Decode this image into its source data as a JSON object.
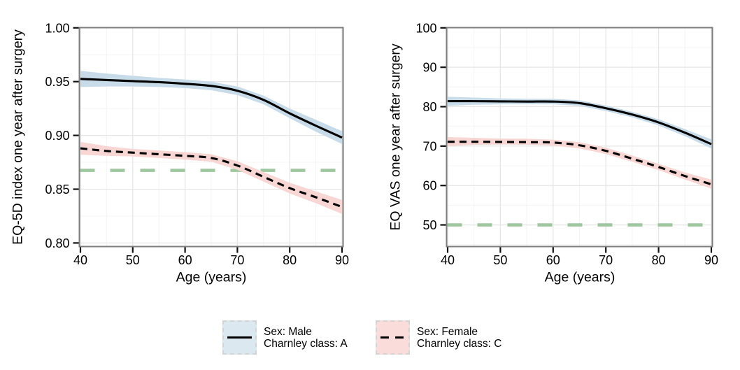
{
  "colors": {
    "background": "#ffffff",
    "panel_border": "#7d7d7d",
    "grid_major": "#e6e6e6",
    "grid_minor": "#f4f4f4",
    "tick": "#111111",
    "text": "#000000"
  },
  "chart_data": [
    {
      "type": "line",
      "title": "",
      "xlabel": "Age (years)",
      "ylabel": "EQ-5D index one year after surgery",
      "xlim": [
        40,
        90
      ],
      "ylim": [
        0.797,
        1.0
      ],
      "grid": true,
      "x_ticks": [
        40,
        50,
        60,
        70,
        80,
        90
      ],
      "x_minor_ticks": [
        45,
        55,
        65,
        75,
        85
      ],
      "y_ticks": [
        0.8,
        0.85,
        0.9,
        0.95,
        1.0
      ],
      "y_tick_labels": [
        "0.80",
        "0.85",
        "0.90",
        "0.95",
        "1.00"
      ],
      "y_minor_ticks": [
        0.825,
        0.875,
        0.925,
        0.975
      ],
      "x": [
        40,
        45,
        50,
        55,
        60,
        65,
        70,
        75,
        80,
        85,
        90
      ],
      "series": [
        {
          "name": "Sex: Male, Charnley class: A",
          "line_style": "solid",
          "line_color": "#000000",
          "band_color": "#c7dbe9",
          "values": [
            0.9525,
            0.9515,
            0.9505,
            0.9495,
            0.948,
            0.946,
            0.9415,
            0.933,
            0.9205,
            0.909,
            0.898
          ],
          "band_hi": [
            0.96,
            0.9575,
            0.9555,
            0.9535,
            0.952,
            0.95,
            0.9455,
            0.937,
            0.925,
            0.9145,
            0.904
          ],
          "band_lo": [
            0.945,
            0.9455,
            0.9455,
            0.945,
            0.944,
            0.942,
            0.9375,
            0.929,
            0.916,
            0.9035,
            0.892
          ]
        },
        {
          "name": "Sex: Female, Charnley class: C",
          "line_style": "dashed",
          "line_color": "#000000",
          "band_color": "#f8d6d3",
          "values": [
            0.888,
            0.8855,
            0.884,
            0.8825,
            0.881,
            0.879,
            0.872,
            0.8615,
            0.851,
            0.8425,
            0.8335
          ],
          "band_hi": [
            0.894,
            0.89,
            0.8875,
            0.886,
            0.8845,
            0.8825,
            0.876,
            0.866,
            0.856,
            0.848,
            0.84
          ],
          "band_lo": [
            0.882,
            0.881,
            0.8805,
            0.879,
            0.8775,
            0.8755,
            0.868,
            0.857,
            0.846,
            0.837,
            0.827
          ]
        }
      ],
      "reference_line": {
        "value": 0.8675,
        "style": "dashed",
        "color": "#9fc79f"
      }
    },
    {
      "type": "line",
      "title": "",
      "xlabel": "Age (years)",
      "ylabel": "EQ VAS one year after surgery",
      "xlim": [
        40,
        90
      ],
      "ylim": [
        44.6,
        100
      ],
      "grid": true,
      "x_ticks": [
        40,
        50,
        60,
        70,
        80,
        90
      ],
      "x_minor_ticks": [
        45,
        55,
        65,
        75,
        85
      ],
      "y_ticks": [
        50,
        60,
        70,
        80,
        90,
        100
      ],
      "y_tick_labels": [
        "50",
        "60",
        "70",
        "80",
        "90",
        "100"
      ],
      "y_minor_ticks": [
        45,
        55,
        65,
        75,
        85,
        95
      ],
      "x": [
        40,
        45,
        50,
        55,
        60,
        65,
        70,
        75,
        80,
        85,
        90
      ],
      "series": [
        {
          "name": "Sex: Male, Charnley class: A",
          "line_style": "solid",
          "line_color": "#000000",
          "band_color": "#c7dbe9",
          "values": [
            81.4,
            81.4,
            81.35,
            81.3,
            81.3,
            80.9,
            79.6,
            78.0,
            76.0,
            73.4,
            70.5
          ],
          "band_hi": [
            82.5,
            82.3,
            82.1,
            82.0,
            82.0,
            81.6,
            80.3,
            78.7,
            76.8,
            74.3,
            71.7
          ],
          "band_lo": [
            80.2,
            80.5,
            80.6,
            80.6,
            80.6,
            80.2,
            78.9,
            77.3,
            75.2,
            72.5,
            69.4
          ]
        },
        {
          "name": "Sex: Female, Charnley class: C",
          "line_style": "dashed",
          "line_color": "#000000",
          "band_color": "#f8d6d3",
          "values": [
            71.1,
            71.1,
            71.05,
            71.0,
            70.9,
            70.2,
            68.8,
            66.8,
            64.7,
            62.4,
            60.3
          ],
          "band_hi": [
            72.3,
            72.1,
            71.9,
            71.85,
            71.65,
            71.0,
            69.6,
            67.6,
            65.5,
            63.3,
            61.5
          ],
          "band_lo": [
            70.0,
            70.3,
            70.4,
            70.35,
            70.15,
            69.4,
            68.0,
            66.0,
            63.9,
            61.5,
            59.2
          ]
        }
      ],
      "reference_line": {
        "value": 50,
        "style": "dashed",
        "color": "#9fc79f"
      }
    }
  ],
  "legend": {
    "items": [
      {
        "line1": "Sex: Male",
        "line2": "Charnley class: A",
        "swatch_fill": "#dbe8f0",
        "line_style": "solid",
        "line_color": "#000000"
      },
      {
        "line1": "Sex: Female",
        "line2": "Charnley class: C",
        "swatch_fill": "#fadcdb",
        "line_style": "dashed",
        "line_color": "#000000"
      }
    ]
  }
}
